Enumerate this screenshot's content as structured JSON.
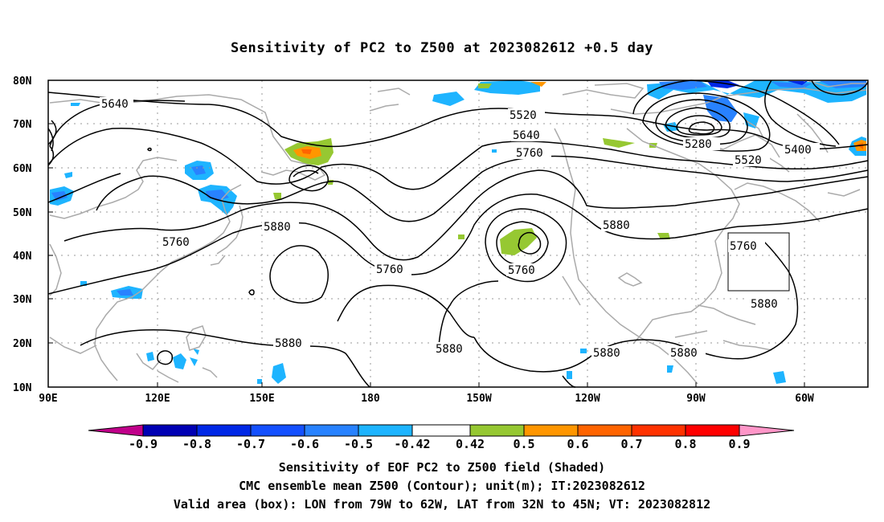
{
  "title": "Sensitivity of PC2 to Z500 at 2023082612 +0.5 day",
  "lat_labels": [
    "80N",
    "70N",
    "60N",
    "50N",
    "40N",
    "30N",
    "20N",
    "10N"
  ],
  "lon_labels": [
    "90E",
    "120E",
    "150E",
    "180",
    "150W",
    "120W",
    "90W",
    "60W"
  ],
  "contour_labels": [
    {
      "text": "5640"
    },
    {
      "text": "5520"
    },
    {
      "text": "5640"
    },
    {
      "text": "5760"
    },
    {
      "text": "5280"
    },
    {
      "text": "5400"
    },
    {
      "text": "5520"
    },
    {
      "text": "5760"
    },
    {
      "text": "5880"
    },
    {
      "text": "5760"
    },
    {
      "text": "5760"
    },
    {
      "text": "5880"
    },
    {
      "text": "5760"
    },
    {
      "text": "5880"
    },
    {
      "text": "5880"
    },
    {
      "text": "5880"
    },
    {
      "text": "5880"
    },
    {
      "text": "5880"
    }
  ],
  "colorbar": {
    "labels": [
      "-0.9",
      "-0.8",
      "-0.7",
      "-0.6",
      "-0.5",
      "-0.42",
      "0.42",
      "0.5",
      "0.6",
      "0.7",
      "0.8",
      "0.9"
    ],
    "colors": {
      "low_triangle": "#c0008a",
      "boxes": [
        "#0000b4",
        "#0028e6",
        "#1450ff",
        "#2882ff",
        "#1eb4ff",
        "#ffffff",
        "#96c832",
        "#ff9600",
        "#ff6400",
        "#ff3200",
        "#ff0000"
      ],
      "high_triangle": "#ff96c8"
    }
  },
  "captions": [
    "Sensitivity of EOF PC2 to Z500 field (Shaded)",
    "CMC ensemble mean Z500 (Contour); unit(m); IT:2023082612",
    "Valid area (box): LON from 79W to 62W, LAT from 32N to 45N; VT: 2023082812"
  ],
  "map_colors": {
    "coast": "#aaaaaa",
    "contour": "#000000",
    "grid": "#999999",
    "frame": "#000000",
    "valid_box": "#000000"
  }
}
